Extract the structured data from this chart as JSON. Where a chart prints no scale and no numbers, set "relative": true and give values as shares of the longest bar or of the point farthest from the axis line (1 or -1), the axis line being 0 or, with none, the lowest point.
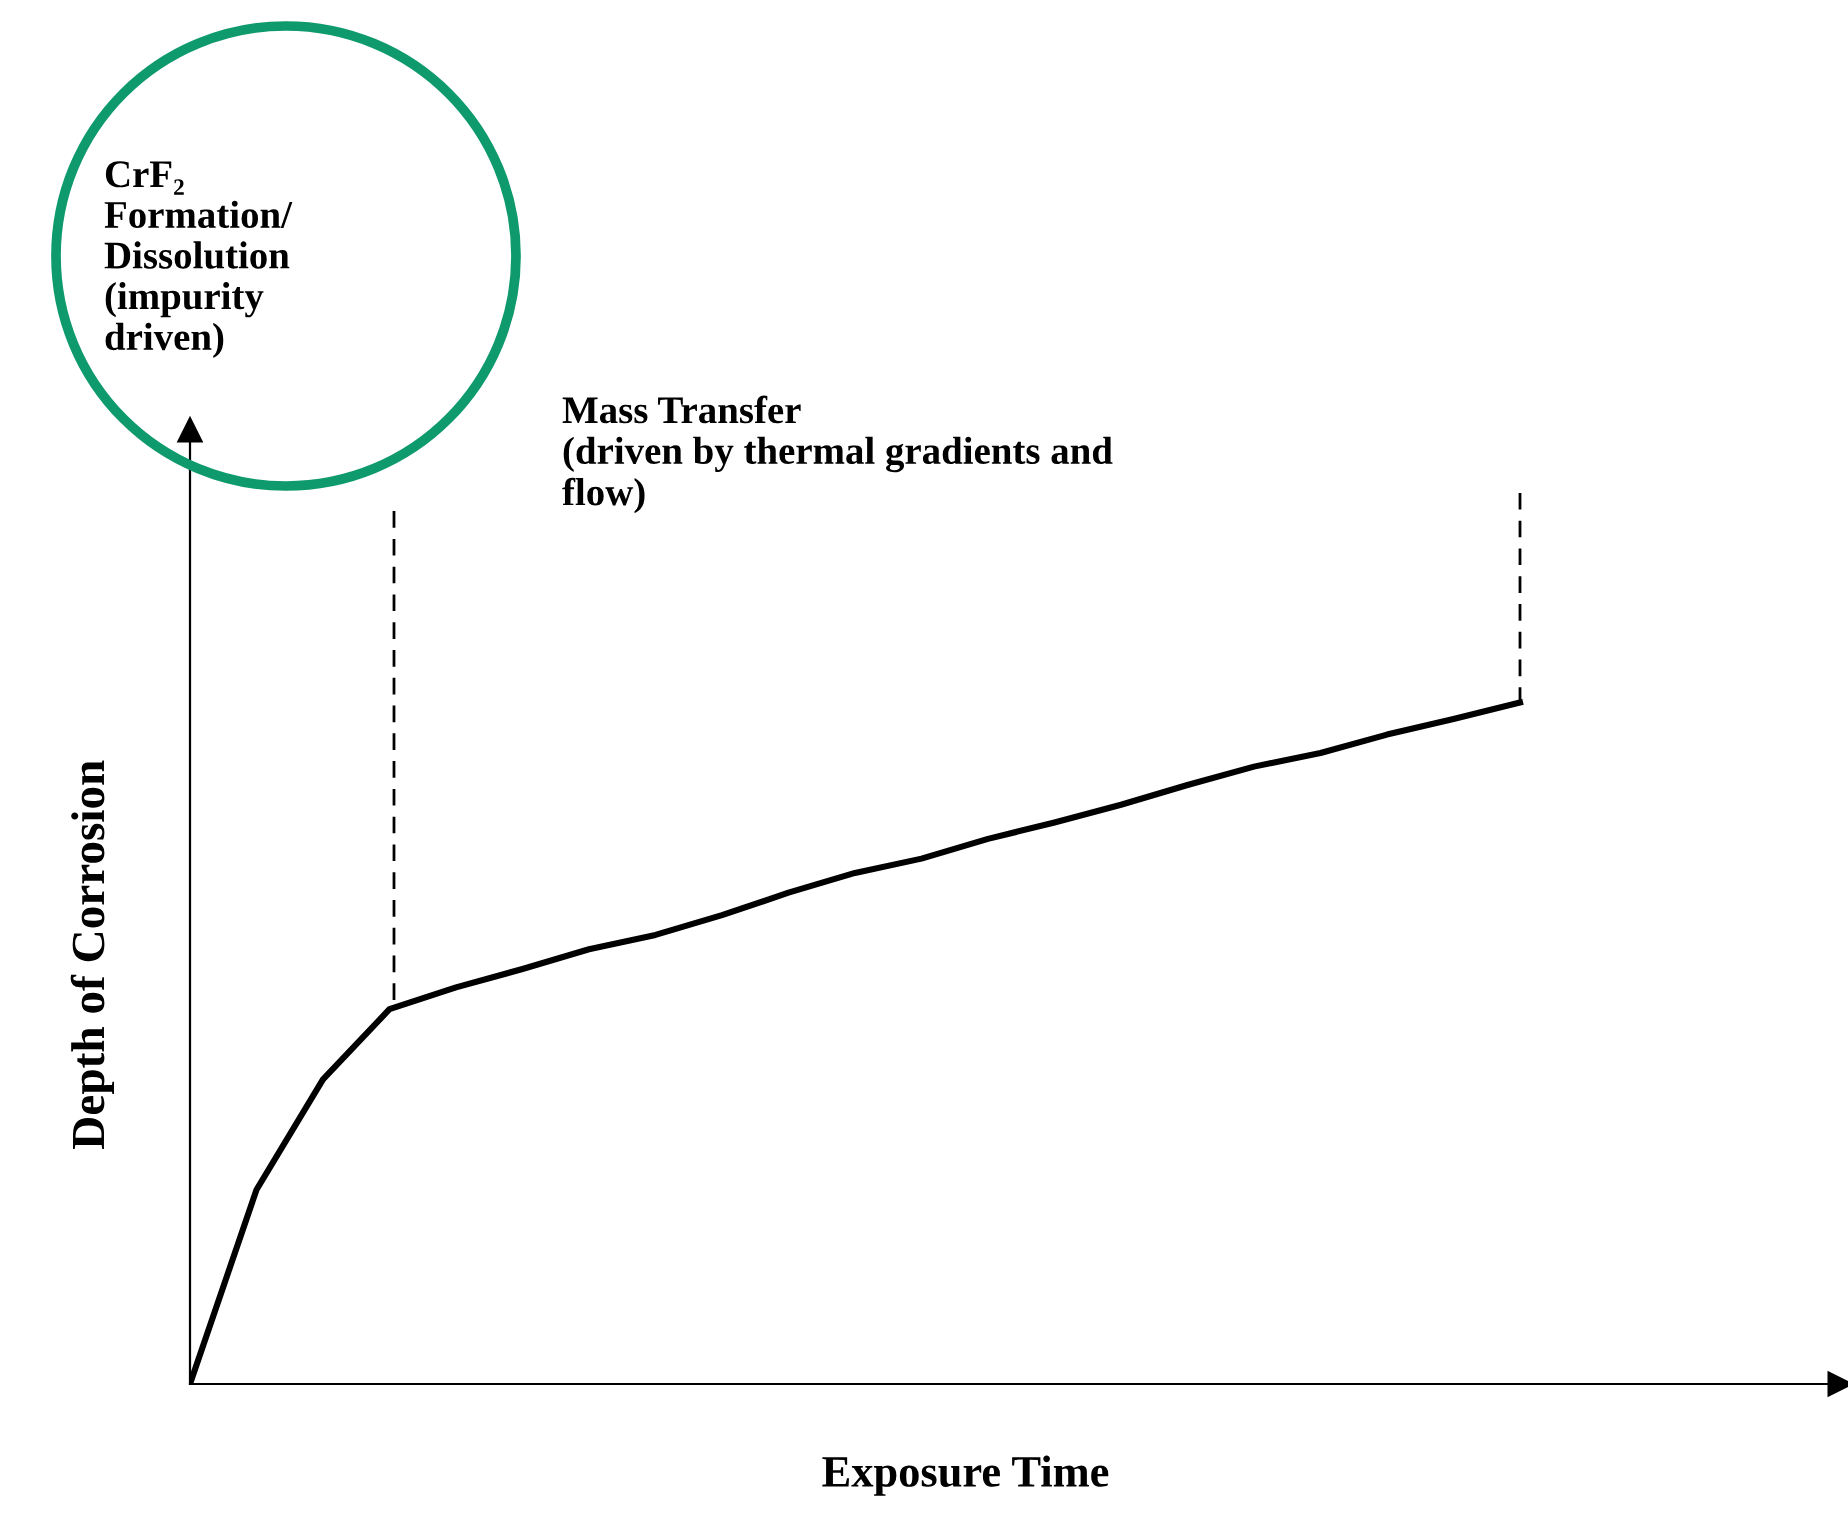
{
  "chart_data": {
    "type": "line",
    "relative": true,
    "xlabel": "Exposure Time",
    "ylabel": "Depth of Corrosion",
    "categories": [
      null,
      null,
      null,
      null,
      null,
      null,
      null,
      null,
      null,
      null,
      null,
      null,
      null,
      null,
      null,
      null,
      null,
      null,
      null,
      null,
      null
    ],
    "series": [
      {
        "color": "#000000",
        "values": [
          0,
          0.285,
          0.447,
          0.55,
          0.582,
          0.609,
          0.638,
          0.659,
          0.688,
          0.721,
          0.75,
          0.771,
          0.8,
          0.824,
          0.85,
          0.879,
          0.906,
          0.926,
          0.953,
          0.976,
          1
        ]
      }
    ],
    "annotations": [
      "CrF₂\nFormation/\nDissolution\n(impurity\ndriven)",
      "Mass Transfer\n(driven by thermal gradients and\nflow)"
    ],
    "marker": "none",
    "line_style": "solid"
  }
}
